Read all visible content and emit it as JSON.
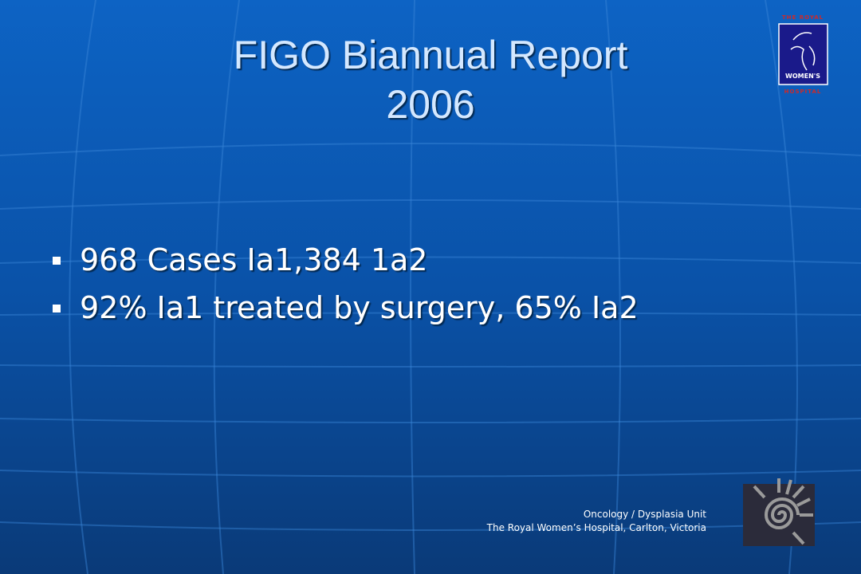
{
  "slide": {
    "title": [
      "FIGO Biannual Report",
      "2006"
    ],
    "bullets": [
      "968 Cases Ia1,384 1a2",
      "92% Ia1 treated by surgery, 65% Ia2"
    ],
    "footer": [
      "Oncology / Dysplasia Unit",
      "The Royal Women’s Hospital, Carlton, Victoria"
    ],
    "logo": {
      "top": "THE ROYAL",
      "middle": "WOMEN'S",
      "bottom": "HOSPITAL"
    }
  }
}
